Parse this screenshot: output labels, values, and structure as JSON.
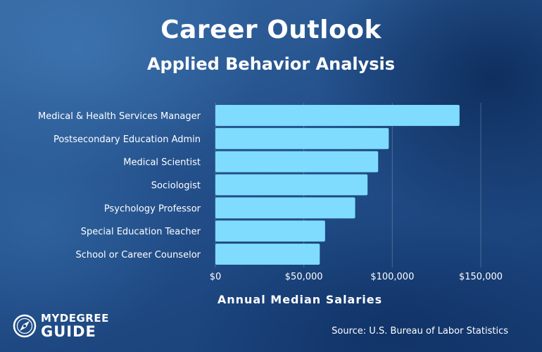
{
  "brand": {
    "line1": "MYDEGREE",
    "line2": "GUIDE",
    "icon": "compass-icon"
  },
  "source": "Source: U.S. Bureau of Labor Statistics",
  "colors": {
    "bar": "#7fdcff",
    "text": "#ffffff"
  },
  "chart_data": {
    "type": "bar",
    "orientation": "horizontal",
    "title": "Career Outlook",
    "subtitle": "Applied Behavior Analysis",
    "xlabel": "Annual Median Salaries",
    "ylabel": "",
    "categories": [
      "Medical & Health Services Manager",
      "Postsecondary Education Admin",
      "Medical Scientist",
      "Sociologist",
      "Psychology Professor",
      "Special Education Teacher",
      "School or Career Counselor"
    ],
    "values": [
      138000,
      98000,
      92000,
      86000,
      79000,
      62000,
      59000
    ],
    "xlim": [
      0,
      150000
    ],
    "xticks": [
      0,
      50000,
      100000,
      150000
    ],
    "xtick_labels": [
      "$0",
      "$50,000",
      "$100,000",
      "$150,000"
    ],
    "grid": true,
    "legend": "none"
  }
}
